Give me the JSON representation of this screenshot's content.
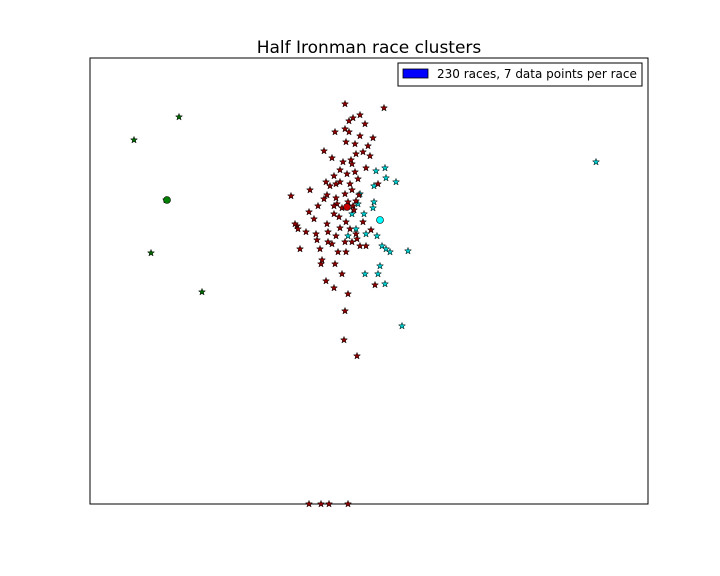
{
  "chart_data": {
    "type": "scatter",
    "title": "Half Ironman race clusters",
    "xlabel": "",
    "ylabel": "",
    "xlim": [
      0,
      558
    ],
    "ylim": [
      0,
      446
    ],
    "axis_ticks": false,
    "grid": false,
    "legend": {
      "placement": "top-right",
      "label": "230 races, 7 data points per race",
      "swatch_color": "#0000ff"
    },
    "series": [
      {
        "color": "#006400",
        "marker": "star",
        "points": [
          [
            44,
            364
          ],
          [
            89,
            387
          ],
          [
            76,
            304
          ],
          [
            61,
            251
          ],
          [
            112,
            212
          ]
        ]
      },
      {
        "color": "#00c8c8",
        "marker": "star",
        "points": [
          [
            506,
            342
          ],
          [
            286,
            333
          ],
          [
            295,
            336
          ],
          [
            306,
            322
          ],
          [
            296,
            326
          ],
          [
            284,
            318
          ],
          [
            284,
            302
          ],
          [
            274,
            290
          ],
          [
            292,
            258
          ],
          [
            300,
            252
          ],
          [
            296,
            255
          ],
          [
            318,
            253
          ],
          [
            287,
            268
          ],
          [
            276,
            270
          ],
          [
            283,
            296
          ],
          [
            270,
            310
          ],
          [
            268,
            300
          ],
          [
            262,
            290
          ],
          [
            275,
            230
          ],
          [
            312,
            178
          ],
          [
            295,
            220
          ],
          [
            290,
            238
          ],
          [
            288,
            230
          ],
          [
            266,
            275
          ],
          [
            258,
            268
          ]
        ]
      },
      {
        "color": "#8b0000",
        "marker": "star",
        "points": [
          [
            255,
            400
          ],
          [
            294,
            396
          ],
          [
            263,
            386
          ],
          [
            270,
            389
          ],
          [
            259,
            383
          ],
          [
            275,
            380
          ],
          [
            255,
            375
          ],
          [
            245,
            372
          ],
          [
            259,
            372
          ],
          [
            270,
            368
          ],
          [
            283,
            366
          ],
          [
            278,
            358
          ],
          [
            256,
            362
          ],
          [
            265,
            360
          ],
          [
            266,
            350
          ],
          [
            273,
            352
          ],
          [
            280,
            348
          ],
          [
            234,
            353
          ],
          [
            262,
            340
          ],
          [
            276,
            336
          ],
          [
            250,
            334
          ],
          [
            257,
            330
          ],
          [
            268,
            325
          ],
          [
            246,
            320
          ],
          [
            240,
            318
          ],
          [
            262,
            314
          ],
          [
            255,
            310
          ],
          [
            269,
            309
          ],
          [
            247,
            300
          ],
          [
            258,
            302
          ],
          [
            263,
            298
          ],
          [
            220,
            314
          ],
          [
            201,
            308
          ],
          [
            236,
            322
          ],
          [
            250,
            322
          ],
          [
            260,
            320
          ],
          [
            234,
            305
          ],
          [
            264,
            294
          ],
          [
            244,
            290
          ],
          [
            219,
            292
          ],
          [
            224,
            285
          ],
          [
            207,
            278
          ],
          [
            250,
            276
          ],
          [
            256,
            282
          ],
          [
            246,
            268
          ],
          [
            242,
            260
          ],
          [
            230,
            255
          ],
          [
            238,
            262
          ],
          [
            262,
            262
          ],
          [
            270,
            258
          ],
          [
            256,
            252
          ],
          [
            245,
            240
          ],
          [
            231,
            240
          ],
          [
            252,
            230
          ],
          [
            236,
            223
          ],
          [
            244,
            216
          ],
          [
            258,
            210
          ],
          [
            255,
            193
          ],
          [
            267,
            148
          ],
          [
            267,
            265
          ],
          [
            285,
            219
          ],
          [
            254,
            164
          ],
          [
            239,
            0
          ],
          [
            231,
            0
          ],
          [
            219,
            0
          ],
          [
            258,
            0
          ],
          [
            260,
            275
          ],
          [
            249,
            287
          ],
          [
            226,
            270
          ],
          [
            205,
            280
          ],
          [
            208,
            275
          ],
          [
            210,
            255
          ],
          [
            216,
            272
          ],
          [
            228,
            298
          ],
          [
            237,
            309
          ],
          [
            265,
            332
          ],
          [
            242,
            346
          ],
          [
            261,
            344
          ],
          [
            288,
            320
          ],
          [
            273,
            282
          ],
          [
            276,
            258
          ],
          [
            248,
            252
          ],
          [
            232,
            244
          ],
          [
            227,
            264
          ],
          [
            252,
            296
          ],
          [
            266,
            270
          ],
          [
            281,
            274
          ],
          [
            253,
            342
          ],
          [
            244,
            328
          ],
          [
            238,
            272
          ],
          [
            244,
            298
          ],
          [
            255,
            262
          ],
          [
            266,
            303
          ],
          [
            237,
            280
          ],
          [
            246,
            306
          ]
        ]
      }
    ],
    "centroids": [
      {
        "color": "#008000",
        "point": [
          77,
          304
        ]
      },
      {
        "color": "#00ffff",
        "point": [
          290,
          284
        ]
      },
      {
        "color": "#c80000",
        "point": [
          257,
          297
        ]
      }
    ]
  }
}
